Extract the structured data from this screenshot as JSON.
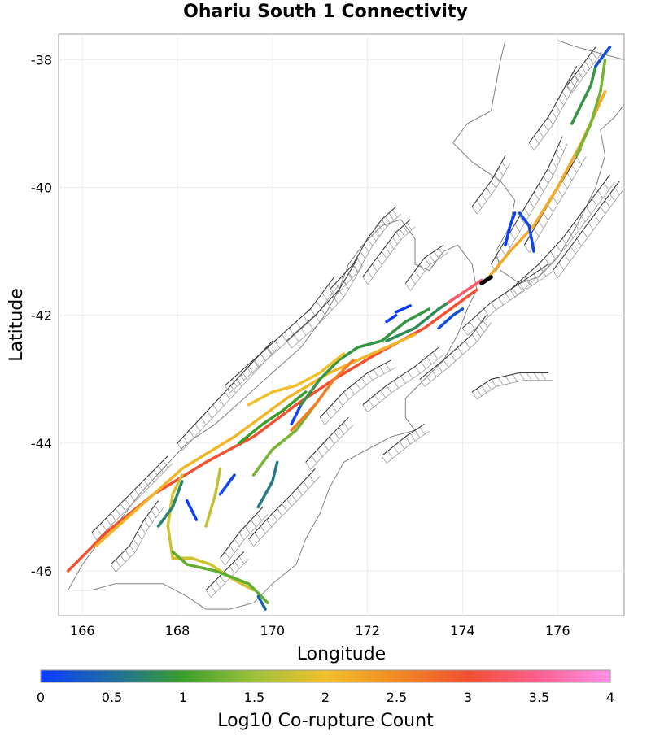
{
  "title": "Ohariu South 1 Connectivity",
  "axes": {
    "xlabel": "Longitude",
    "ylabel": "Latitude",
    "x_ticks": [
      "166",
      "168",
      "170",
      "172",
      "174",
      "176"
    ],
    "y_ticks": [
      "-38",
      "-40",
      "-42",
      "-44",
      "-46"
    ],
    "xlim": [
      165.5,
      177.4
    ],
    "ylim": [
      -46.7,
      -37.6
    ]
  },
  "colorbar": {
    "label": "Log10 Co-rupture Count",
    "ticks": [
      "0",
      "0.5",
      "1",
      "1.5",
      "2",
      "2.5",
      "3",
      "3.5",
      "4"
    ],
    "range": [
      0,
      4
    ],
    "colors": [
      "#0a3cff",
      "#1e6fa0",
      "#3aa02a",
      "#9ec23a",
      "#f2c02a",
      "#f28a22",
      "#f25030",
      "#ff6090",
      "#ff90e8"
    ]
  },
  "colors": {
    "background_faults": "#3a3a3a",
    "fault_surface": "#9a9a9a",
    "coastline": "#808080",
    "source_fault": "#000000"
  },
  "source_fault": {
    "name": "Ohariu South 1",
    "lon": [
      174.4,
      174.6
    ],
    "lat": [
      -41.5,
      -41.4
    ]
  },
  "ruptures": [
    {
      "value": 3.0,
      "lon": [
        165.7,
        166.5,
        167.5,
        168.6,
        169.6,
        170.5,
        171.3,
        172.2,
        173.2,
        174.3
      ],
      "lat": [
        -46.0,
        -45.4,
        -44.8,
        -44.3,
        -43.9,
        -43.4,
        -43.0,
        -42.6,
        -42.2,
        -41.6
      ]
    },
    {
      "value": 2.1,
      "lon": [
        166.3,
        167.2,
        168.1,
        169.2,
        170.3,
        171.2,
        172.1,
        173.0
      ],
      "lat": [
        -45.6,
        -45.0,
        -44.4,
        -43.9,
        -43.3,
        -42.9,
        -42.6,
        -42.3
      ]
    },
    {
      "value": 2.2,
      "lon": [
        174.5,
        175.0,
        175.5,
        176.0,
        176.5,
        177.0
      ],
      "lat": [
        -41.45,
        -41.0,
        -40.6,
        -40.0,
        -39.3,
        -38.5
      ]
    },
    {
      "value": 1.3,
      "lon": [
        176.4,
        176.7,
        176.9,
        177.0
      ],
      "lat": [
        -39.5,
        -39.0,
        -38.5,
        -38.0
      ]
    },
    {
      "value": 0.9,
      "lon": [
        176.3,
        176.5,
        176.7,
        176.8
      ],
      "lat": [
        -39.0,
        -38.7,
        -38.4,
        -38.1
      ]
    },
    {
      "value": 0.2,
      "lon": [
        176.8,
        177.1
      ],
      "lat": [
        -38.1,
        -37.8
      ]
    },
    {
      "value": 0.1,
      "lon": [
        175.2,
        175.4,
        175.5
      ],
      "lat": [
        -40.4,
        -40.6,
        -41.0
      ]
    },
    {
      "value": 0.0,
      "lon": [
        174.9,
        175.0,
        175.1
      ],
      "lat": [
        -40.9,
        -40.6,
        -40.4
      ]
    },
    {
      "value": 1.8,
      "lon": [
        168.1,
        167.9,
        167.8,
        167.9,
        168.3,
        168.7,
        169.1,
        169.6
      ],
      "lat": [
        -44.5,
        -44.8,
        -45.3,
        -45.8,
        -45.8,
        -45.9,
        -46.1,
        -46.3
      ]
    },
    {
      "value": 1.2,
      "lon": [
        167.9,
        168.2,
        168.8,
        169.5,
        169.9
      ],
      "lat": [
        -45.7,
        -45.9,
        -46.0,
        -46.2,
        -46.5
      ]
    },
    {
      "value": 0.4,
      "lon": [
        169.7,
        169.85
      ],
      "lat": [
        -46.4,
        -46.6
      ]
    },
    {
      "value": 0.0,
      "lon": [
        168.2,
        168.4
      ],
      "lat": [
        -44.9,
        -45.2
      ]
    },
    {
      "value": 0.7,
      "lon": [
        167.6,
        167.9,
        168.1
      ],
      "lat": [
        -45.3,
        -45.0,
        -44.6
      ]
    },
    {
      "value": 1.7,
      "lon": [
        168.6,
        168.8,
        168.9
      ],
      "lat": [
        -45.3,
        -44.8,
        -44.4
      ]
    },
    {
      "value": 0.1,
      "lon": [
        168.9,
        169.2
      ],
      "lat": [
        -44.8,
        -44.5
      ]
    },
    {
      "value": 1.0,
      "lon": [
        169.3,
        169.8,
        170.2,
        170.7
      ],
      "lat": [
        -44.0,
        -43.7,
        -43.5,
        -43.2
      ]
    },
    {
      "value": 1.3,
      "lon": [
        169.6,
        170.0,
        170.5,
        171.0
      ],
      "lat": [
        -44.5,
        -44.1,
        -43.8,
        -43.3
      ]
    },
    {
      "value": 0.6,
      "lon": [
        169.7,
        170.0,
        170.1
      ],
      "lat": [
        -45.0,
        -44.6,
        -44.3
      ]
    },
    {
      "value": 0.1,
      "lon": [
        170.4,
        170.6
      ],
      "lat": [
        -43.7,
        -43.4
      ]
    },
    {
      "value": 0.9,
      "lon": [
        170.6,
        171.0,
        171.4,
        171.8,
        172.3,
        172.8,
        173.3
      ],
      "lat": [
        -43.4,
        -43.0,
        -42.7,
        -42.5,
        -42.4,
        -42.1,
        -41.9
      ]
    },
    {
      "value": 0.8,
      "lon": [
        172.4,
        173.0,
        173.5,
        173.9
      ],
      "lat": [
        -42.4,
        -42.2,
        -41.9,
        -41.7
      ]
    },
    {
      "value": 0.0,
      "lon": [
        172.6,
        172.9
      ],
      "lat": [
        -41.95,
        -41.85
      ]
    },
    {
      "value": 0.0,
      "lon": [
        172.4,
        172.6
      ],
      "lat": [
        -42.1,
        -42.0
      ]
    },
    {
      "value": 0.2,
      "lon": [
        173.5,
        173.8,
        174.0
      ],
      "lat": [
        -42.2,
        -42.0,
        -41.9
      ]
    },
    {
      "value": 2.6,
      "lon": [
        170.4,
        170.9,
        171.3,
        171.7
      ],
      "lat": [
        -43.8,
        -43.4,
        -43.0,
        -42.7
      ]
    },
    {
      "value": 2.0,
      "lon": [
        169.5,
        170.0,
        170.5,
        171.0,
        171.5
      ],
      "lat": [
        -43.4,
        -43.2,
        -43.1,
        -42.9,
        -42.6
      ]
    },
    {
      "value": 3.3,
      "lon": [
        173.7,
        174.1,
        174.4
      ],
      "lat": [
        -41.8,
        -41.6,
        -41.45
      ]
    }
  ],
  "faults": [
    [
      [
        166.2,
        -45.4
      ],
      [
        166.6,
        -45.1
      ],
      [
        167.0,
        -44.8
      ],
      [
        167.4,
        -44.5
      ],
      [
        167.8,
        -44.2
      ]
    ],
    [
      [
        166.6,
        -45.9
      ],
      [
        167.0,
        -45.6
      ],
      [
        167.3,
        -45.2
      ],
      [
        167.6,
        -44.9
      ]
    ],
    [
      [
        168.0,
        -44.0
      ],
      [
        168.5,
        -43.6
      ],
      [
        169.0,
        -43.2
      ],
      [
        169.5,
        -42.8
      ],
      [
        170.0,
        -42.4
      ]
    ],
    [
      [
        169.0,
        -43.1
      ],
      [
        169.6,
        -42.7
      ],
      [
        170.2,
        -42.3
      ],
      [
        170.8,
        -41.9
      ],
      [
        171.3,
        -41.4
      ]
    ],
    [
      [
        170.3,
        -42.4
      ],
      [
        170.9,
        -42.0
      ],
      [
        171.4,
        -41.6
      ],
      [
        171.8,
        -41.1
      ]
    ],
    [
      [
        171.2,
        -41.6
      ],
      [
        171.7,
        -41.2
      ],
      [
        172.0,
        -40.8
      ],
      [
        172.3,
        -40.5
      ],
      [
        172.6,
        -40.3
      ]
    ],
    [
      [
        171.9,
        -41.4
      ],
      [
        172.3,
        -41.0
      ],
      [
        172.6,
        -40.7
      ],
      [
        172.9,
        -40.5
      ]
    ],
    [
      [
        172.8,
        -41.5
      ],
      [
        173.2,
        -41.1
      ],
      [
        173.6,
        -40.9
      ]
    ],
    [
      [
        171.0,
        -43.6
      ],
      [
        171.5,
        -43.2
      ],
      [
        172.0,
        -42.9
      ],
      [
        172.5,
        -42.7
      ]
    ],
    [
      [
        170.7,
        -44.3
      ],
      [
        171.2,
        -43.9
      ],
      [
        171.6,
        -43.6
      ]
    ],
    [
      [
        169.5,
        -45.5
      ],
      [
        170.0,
        -45.1
      ],
      [
        170.4,
        -44.8
      ],
      [
        170.9,
        -44.4
      ]
    ],
    [
      [
        168.9,
        -45.8
      ],
      [
        169.3,
        -45.4
      ],
      [
        169.8,
        -45.0
      ]
    ],
    [
      [
        168.6,
        -46.3
      ],
      [
        169.0,
        -46.0
      ],
      [
        169.4,
        -45.7
      ]
    ],
    [
      [
        171.9,
        -43.4
      ],
      [
        172.4,
        -43.1
      ],
      [
        173.0,
        -42.8
      ],
      [
        173.5,
        -42.5
      ]
    ],
    [
      [
        173.1,
        -43.0
      ],
      [
        173.6,
        -42.7
      ],
      [
        174.2,
        -42.3
      ],
      [
        174.5,
        -42.0
      ]
    ],
    [
      [
        174.0,
        -42.2
      ],
      [
        174.6,
        -41.8
      ],
      [
        175.2,
        -41.5
      ],
      [
        175.8,
        -41.2
      ]
    ],
    [
      [
        175.0,
        -41.6
      ],
      [
        175.6,
        -41.2
      ],
      [
        176.1,
        -40.8
      ],
      [
        176.6,
        -40.3
      ],
      [
        177.1,
        -39.8
      ]
    ],
    [
      [
        175.9,
        -41.3
      ],
      [
        176.4,
        -40.8
      ],
      [
        176.9,
        -40.3
      ],
      [
        177.3,
        -39.9
      ]
    ],
    [
      [
        174.6,
        -41.2
      ],
      [
        175.0,
        -40.7
      ],
      [
        175.4,
        -40.2
      ],
      [
        175.8,
        -39.7
      ],
      [
        176.1,
        -39.2
      ]
    ],
    [
      [
        175.3,
        -40.9
      ],
      [
        175.7,
        -40.4
      ],
      [
        176.1,
        -39.9
      ],
      [
        176.5,
        -39.4
      ]
    ],
    [
      [
        174.2,
        -40.3
      ],
      [
        174.6,
        -39.9
      ],
      [
        174.9,
        -39.5
      ]
    ],
    [
      [
        175.4,
        -39.3
      ],
      [
        175.8,
        -38.9
      ],
      [
        176.1,
        -38.5
      ],
      [
        176.4,
        -38.1
      ]
    ],
    [
      [
        176.2,
        -38.4
      ],
      [
        176.5,
        -38.1
      ],
      [
        176.8,
        -37.8
      ]
    ],
    [
      [
        174.2,
        -43.2
      ],
      [
        174.6,
        -43.0
      ],
      [
        175.2,
        -42.9
      ],
      [
        175.8,
        -42.9
      ]
    ],
    [
      [
        172.3,
        -44.2
      ],
      [
        172.8,
        -43.9
      ],
      [
        173.2,
        -43.7
      ]
    ]
  ],
  "coastline": [
    [
      [
        165.7,
        -46.3
      ],
      [
        166.0,
        -45.9
      ],
      [
        166.4,
        -45.5
      ],
      [
        166.8,
        -45.2
      ],
      [
        167.2,
        -44.8
      ],
      [
        167.7,
        -44.4
      ],
      [
        168.2,
        -44.0
      ],
      [
        168.8,
        -43.7
      ],
      [
        169.4,
        -43.3
      ],
      [
        170.0,
        -42.9
      ],
      [
        170.6,
        -42.5
      ],
      [
        171.1,
        -42.0
      ],
      [
        171.4,
        -41.6
      ],
      [
        171.6,
        -41.2
      ],
      [
        171.9,
        -40.9
      ],
      [
        172.3,
        -40.6
      ],
      [
        172.7,
        -40.5
      ],
      [
        173.0,
        -40.8
      ],
      [
        173.0,
        -41.2
      ],
      [
        173.3,
        -41.3
      ],
      [
        173.6,
        -41.0
      ],
      [
        173.9,
        -40.9
      ],
      [
        174.2,
        -41.2
      ],
      [
        174.3,
        -41.6
      ],
      [
        174.1,
        -41.9
      ],
      [
        173.9,
        -42.3
      ],
      [
        173.6,
        -42.7
      ],
      [
        173.2,
        -43.0
      ],
      [
        172.8,
        -43.3
      ],
      [
        172.8,
        -43.6
      ],
      [
        173.0,
        -43.8
      ],
      [
        172.5,
        -43.9
      ],
      [
        172.0,
        -44.1
      ],
      [
        171.5,
        -44.3
      ],
      [
        171.2,
        -44.7
      ],
      [
        171.0,
        -45.1
      ],
      [
        170.7,
        -45.5
      ],
      [
        170.5,
        -45.9
      ],
      [
        170.0,
        -46.2
      ],
      [
        169.6,
        -46.5
      ],
      [
        169.1,
        -46.6
      ],
      [
        168.6,
        -46.6
      ],
      [
        168.2,
        -46.4
      ],
      [
        167.7,
        -46.2
      ],
      [
        167.2,
        -46.2
      ],
      [
        166.7,
        -46.2
      ],
      [
        166.2,
        -46.3
      ],
      [
        165.7,
        -46.3
      ]
    ],
    [
      [
        174.8,
        -41.3
      ],
      [
        175.2,
        -41.5
      ],
      [
        175.6,
        -41.4
      ],
      [
        176.0,
        -41.1
      ],
      [
        176.4,
        -40.6
      ],
      [
        176.8,
        -40.0
      ],
      [
        177.0,
        -39.5
      ],
      [
        176.9,
        -39.1
      ],
      [
        177.2,
        -38.9
      ],
      [
        177.4,
        -38.7
      ]
    ],
    [
      [
        174.8,
        -41.3
      ],
      [
        174.7,
        -41.0
      ],
      [
        175.0,
        -40.6
      ],
      [
        175.1,
        -40.2
      ],
      [
        174.8,
        -39.9
      ],
      [
        174.2,
        -39.6
      ],
      [
        173.8,
        -39.3
      ],
      [
        174.1,
        -39.0
      ],
      [
        174.6,
        -38.8
      ],
      [
        174.7,
        -38.4
      ],
      [
        174.8,
        -38.0
      ],
      [
        174.9,
        -37.7
      ]
    ],
    [
      [
        176.0,
        -37.7
      ],
      [
        176.4,
        -37.8
      ],
      [
        176.9,
        -37.9
      ],
      [
        177.4,
        -38.0
      ]
    ]
  ]
}
